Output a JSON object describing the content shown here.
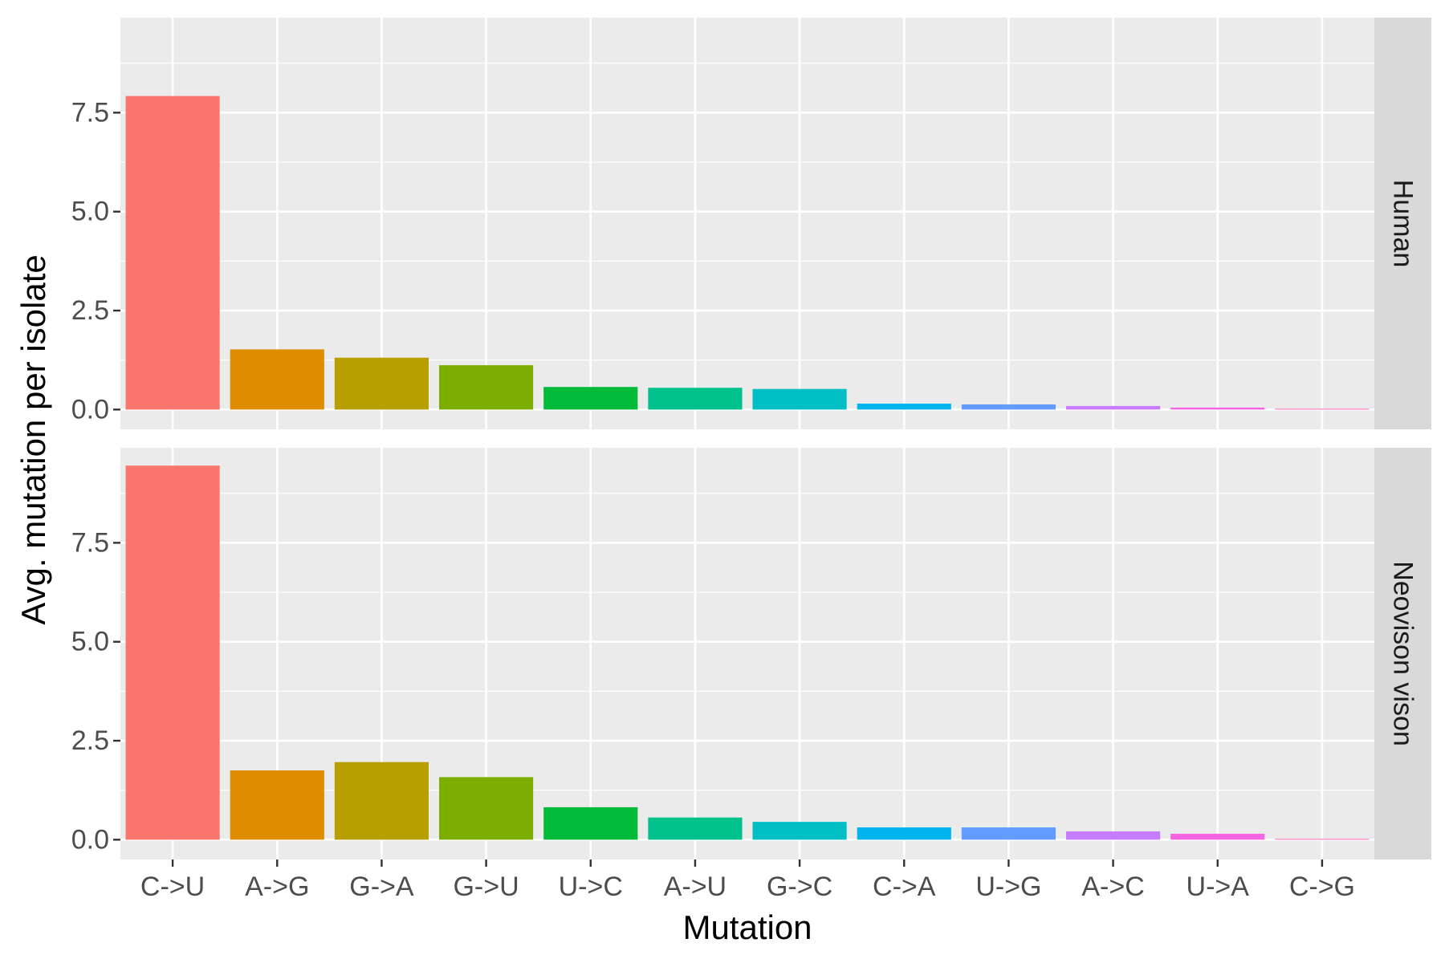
{
  "chart_data": {
    "type": "bar",
    "xlabel": "Mutation",
    "ylabel": "Avg. mutation per isolate",
    "categories": [
      "C->U",
      "A->G",
      "G->A",
      "G->U",
      "U->C",
      "A->U",
      "G->C",
      "C->A",
      "U->G",
      "A->C",
      "U->A",
      "C->G"
    ],
    "colors": [
      "#F8766D",
      "#DE8C00",
      "#B79F00",
      "#7CAE00",
      "#00BA38",
      "#00C08B",
      "#00BFC4",
      "#00B4F0",
      "#619CFF",
      "#C77CFF",
      "#F564E3",
      "#FF64B0"
    ],
    "yticks": [
      "0.0",
      "2.5",
      "5.0",
      "7.5"
    ],
    "ytick_values": [
      0,
      2.5,
      5,
      7.5
    ],
    "grid": true,
    "legend": "none",
    "facets": [
      {
        "name": "Human",
        "ylim": [
          -0.5,
          9.9
        ],
        "values": [
          7.92,
          1.52,
          1.31,
          1.12,
          0.57,
          0.55,
          0.52,
          0.15,
          0.13,
          0.09,
          0.05,
          0.02
        ]
      },
      {
        "name": "Neovison vison",
        "ylim": [
          -0.5,
          9.9
        ],
        "values": [
          9.45,
          1.75,
          1.96,
          1.58,
          0.82,
          0.56,
          0.45,
          0.31,
          0.31,
          0.21,
          0.15,
          0.02
        ]
      }
    ]
  }
}
